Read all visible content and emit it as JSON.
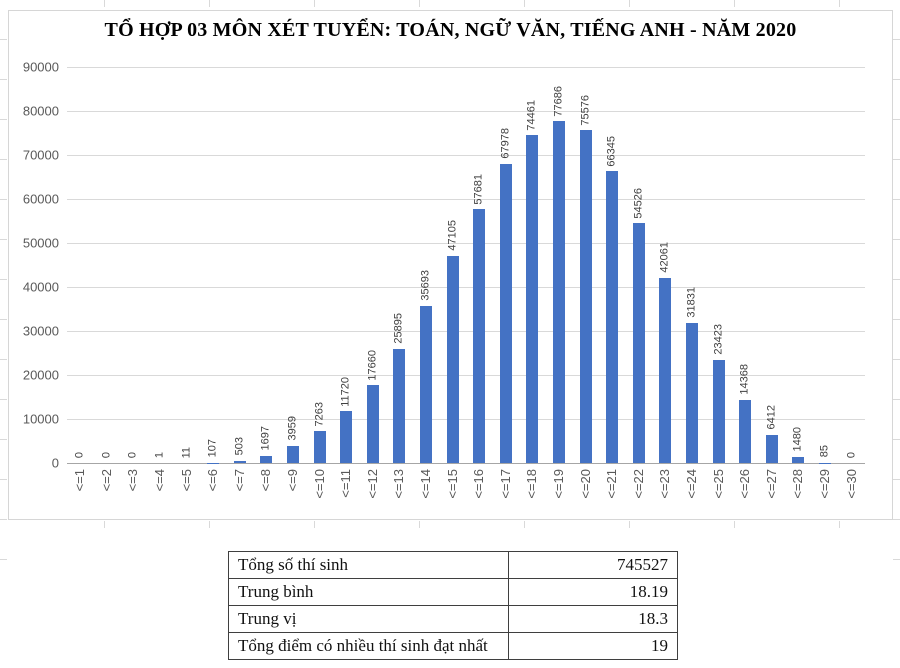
{
  "chart_data": {
    "type": "bar",
    "title": "TỔ HỢP 03 MÔN XÉT TUYỂN: TOÁN, NGỮ VĂN, TIẾNG ANH - NĂM 2020",
    "categories": [
      "<=1",
      "<=2",
      "<=3",
      "<=4",
      "<=5",
      "<=6",
      "<=7",
      "<=8",
      "<=9",
      "<=10",
      "<=11",
      "<=12",
      "<=13",
      "<=14",
      "<=15",
      "<=16",
      "<=17",
      "<=18",
      "<=19",
      "<=20",
      "<=21",
      "<=22",
      "<=23",
      "<=24",
      "<=25",
      "<=26",
      "<=27",
      "<=28",
      "<=29",
      "<=30"
    ],
    "values": [
      0,
      0,
      0,
      1,
      11,
      107,
      503,
      1697,
      3959,
      7263,
      11720,
      17660,
      25895,
      35693,
      47105,
      57681,
      67978,
      74461,
      77686,
      75576,
      66345,
      54526,
      42061,
      31831,
      23423,
      14368,
      6412,
      1480,
      85,
      0
    ],
    "xlabel": "",
    "ylabel": "",
    "ylim": [
      0,
      90000
    ],
    "yticks": [
      0,
      10000,
      20000,
      30000,
      40000,
      50000,
      60000,
      70000,
      80000,
      90000
    ],
    "grid": true,
    "legend": "none",
    "data_labels": "rotated-above-bars",
    "bar_color": "#4472C4",
    "gridline_color": "#d9d9d9",
    "axis_text_color": "#595959",
    "data_label_color": "#404040"
  },
  "summary_table": {
    "rows": [
      {
        "label": "Tổng số thí sinh",
        "value": "745527"
      },
      {
        "label": "Trung bình",
        "value": "18.19"
      },
      {
        "label": "Trung vị",
        "value": "18.3"
      },
      {
        "label": "Tổng điểm có nhiều thí sinh đạt nhất",
        "value": "19"
      }
    ]
  }
}
